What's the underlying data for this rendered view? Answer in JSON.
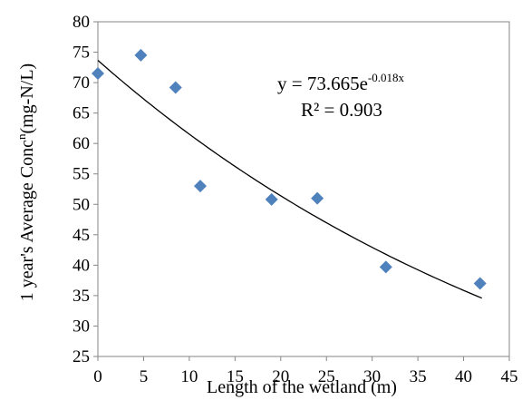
{
  "chart_data": {
    "type": "scatter",
    "xlabel": "Length of the wetland (m)",
    "ylabel": {
      "main": "1 year's Average Conc",
      "sup": "n",
      "tail": "(mg-N/L)"
    },
    "xlim": [
      0,
      45
    ],
    "ylim": [
      25,
      80
    ],
    "xticks": [
      "0",
      "5",
      "10",
      "15",
      "20",
      "25",
      "30",
      "35",
      "40",
      "45"
    ],
    "yticks": [
      "25",
      "30",
      "35",
      "40",
      "45",
      "50",
      "55",
      "60",
      "65",
      "70",
      "75",
      "80"
    ],
    "grid": false,
    "marker": "diamond",
    "marker_color": "#4F81BD",
    "trendline": {
      "type": "exponential",
      "a": 73.665,
      "b": -0.018,
      "x_range": [
        0,
        42
      ],
      "color": "#000000"
    },
    "annotation": {
      "equation_main": "y = 73.665e",
      "equation_sup": "-0.018x",
      "r2": "R² = 0.903"
    },
    "series": [
      {
        "x": [
          0,
          4.7,
          8.5,
          11.2,
          19.0,
          24.0,
          31.5,
          41.8
        ],
        "y": [
          71.5,
          74.5,
          69.2,
          53.0,
          50.8,
          51.0,
          39.7,
          37.0
        ]
      }
    ]
  }
}
